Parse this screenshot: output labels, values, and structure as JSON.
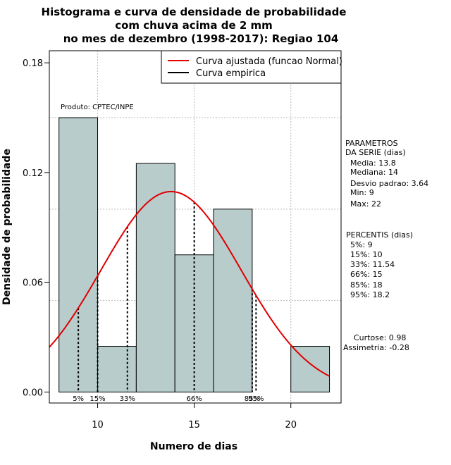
{
  "chart_data": {
    "type": "bar",
    "title_lines": [
      "Histograma e curva de densidade de probabilidade",
      "com chuva acima de 2 mm",
      "no mes de dezembro (1998-2017): Regiao 104"
    ],
    "xlabel": "Numero de dias",
    "ylabel": "Densidade de probabilidade",
    "xlim": [
      7.5,
      22.6
    ],
    "ylim": [
      -0.006,
      0.1866
    ],
    "x_ticks": [
      10,
      15,
      20
    ],
    "x_tick_labels": [
      "10",
      "15",
      "20"
    ],
    "y_ticks": [
      0.0,
      0.06,
      0.12,
      0.18
    ],
    "y_tick_labels": [
      "0.00",
      "0.06",
      "0.12",
      "0.18"
    ],
    "grid_x": [
      10,
      15,
      20
    ],
    "grid_y": [
      0.05,
      0.1,
      0.15
    ],
    "bins": [
      {
        "from": 8,
        "to": 10,
        "density": 0.15
      },
      {
        "from": 10,
        "to": 12,
        "density": 0.025
      },
      {
        "from": 12,
        "to": 14,
        "density": 0.125
      },
      {
        "from": 14,
        "to": 16,
        "density": 0.075
      },
      {
        "from": 16,
        "to": 18,
        "density": 0.1
      },
      {
        "from": 18,
        "to": 20,
        "density": 0.0
      },
      {
        "from": 20,
        "to": 22,
        "density": 0.025
      }
    ],
    "normal_curve": {
      "mean": 13.8,
      "sd": 3.64,
      "x_from": 7.5,
      "x_to": 22
    },
    "percentile_lines": [
      {
        "label": "5%",
        "value": 9
      },
      {
        "label": "15%",
        "value": 10
      },
      {
        "label": "33%",
        "value": 11.54
      },
      {
        "label": "66%",
        "value": 15
      },
      {
        "label": "85%",
        "value": 18
      },
      {
        "label": "95%",
        "value": 18.2
      }
    ],
    "legend": {
      "position": "top-right",
      "entries": [
        {
          "label": "Curva ajustada (funcao Normal)",
          "color": "#e00000"
        },
        {
          "label": "Curva empirica",
          "color": "#000000"
        }
      ]
    },
    "annotation": "Produto: CPTEC/INPE",
    "side_panel": {
      "params_title": [
        "PARAMETROS",
        "DA SERIE (dias)"
      ],
      "params": [
        "Media: 13.8",
        "Mediana: 14",
        "Desvio padrao: 3.64",
        "Min: 9",
        "Max: 22"
      ],
      "percentis_title": "PERCENTIS (dias)",
      "percentis": [
        "5%: 9",
        "15%: 10",
        "33%: 11.54",
        "66%: 15",
        "85%: 18",
        "95%: 18.2"
      ],
      "stats": [
        "Curtose: 0.98",
        "Assimetria: -0.28"
      ]
    },
    "colors": {
      "bar_fill": "#b8cccc",
      "bar_stroke": "#000000",
      "curve": "#e00000",
      "grid": "#bbbbbb"
    }
  }
}
